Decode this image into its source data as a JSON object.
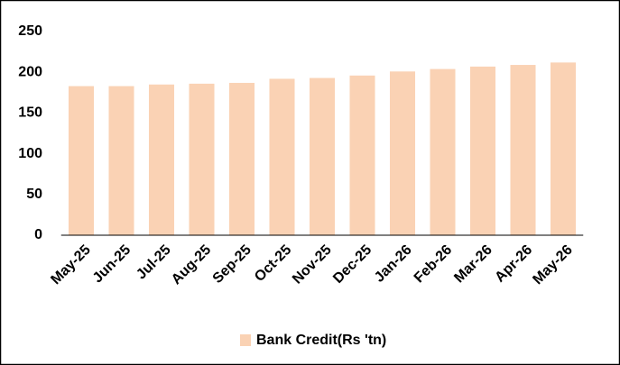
{
  "chart_data": {
    "type": "bar",
    "categories": [
      "May-25",
      "Jun-25",
      "Jul-25",
      "Aug-25",
      "Sep-25",
      "Oct-25",
      "Nov-25",
      "Dec-25",
      "Jan-26",
      "Feb-26",
      "Mar-26",
      "Apr-26",
      "May-26"
    ],
    "series": [
      {
        "name": "Bank Credit(Rs 'tn)",
        "color": "#fad2b4",
        "values": [
          183,
          183,
          185,
          186,
          187,
          192,
          193,
          196,
          201,
          204,
          207,
          209,
          212
        ]
      }
    ],
    "ylim": [
      0,
      250
    ],
    "yticks": [
      0,
      50,
      100,
      150,
      200,
      250
    ],
    "grid": false,
    "legend": "bottom"
  }
}
